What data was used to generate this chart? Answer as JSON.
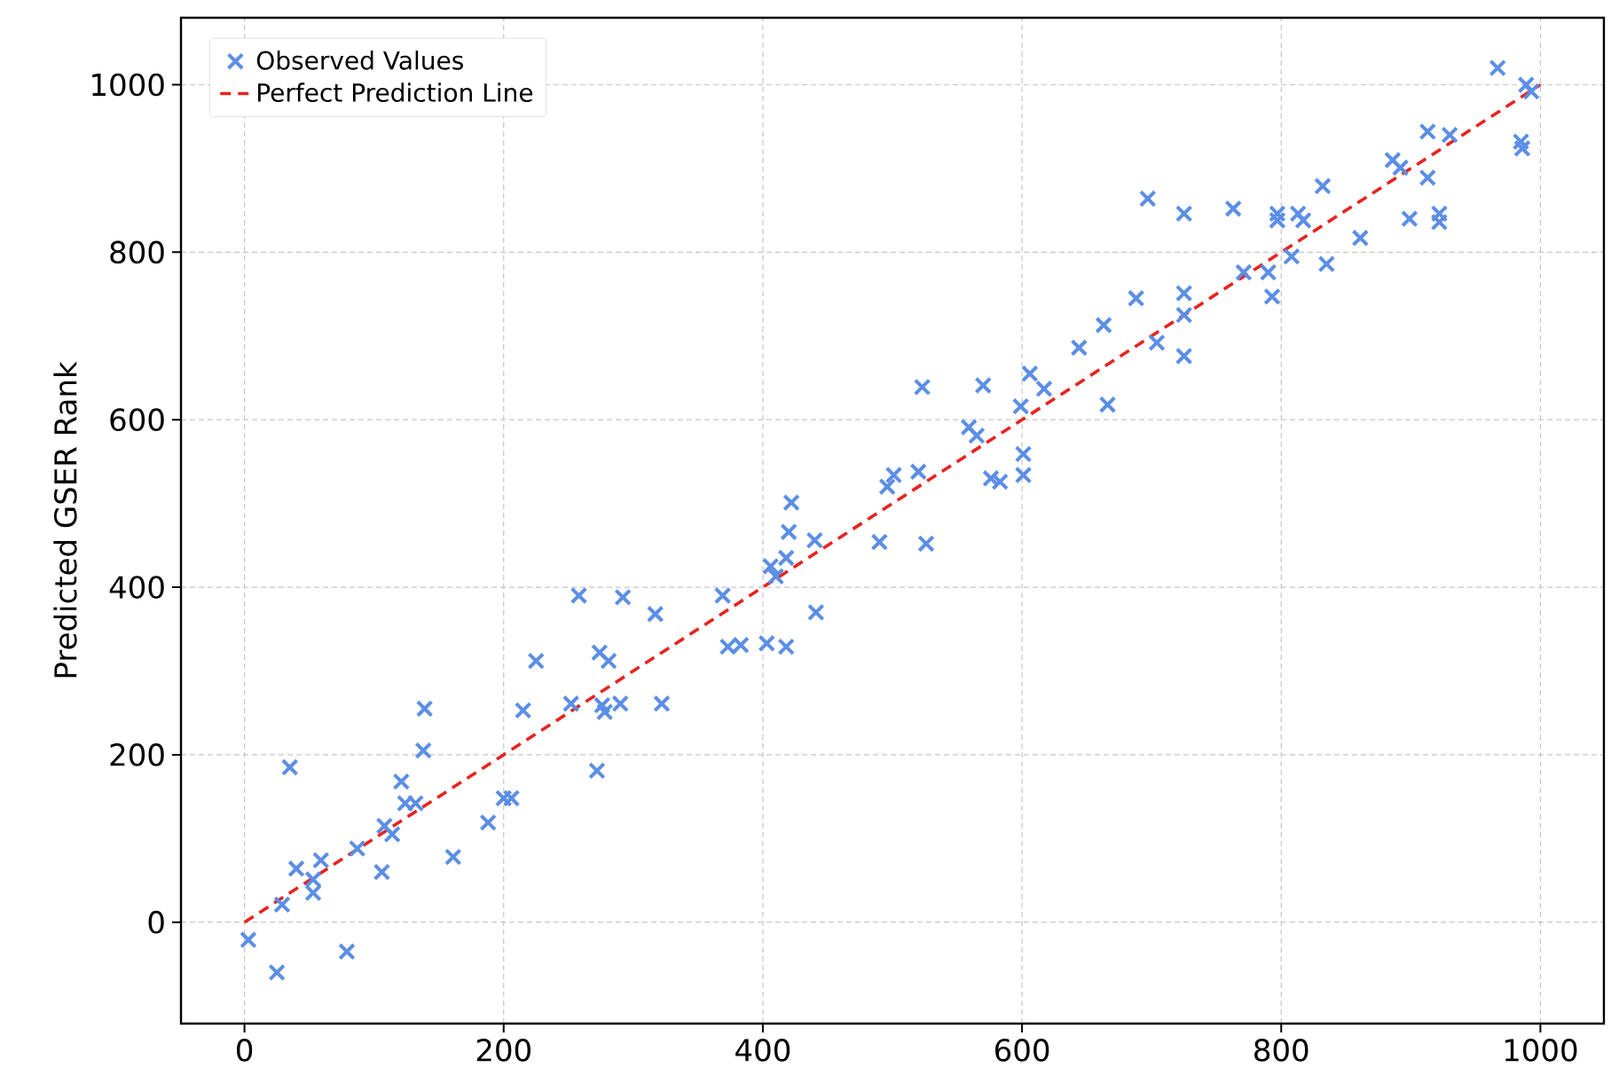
{
  "chart_data": {
    "type": "scatter",
    "ylabel": "Predicted GSER Rank",
    "xlim": [
      -49,
      1049
    ],
    "ylim": [
      -121,
      1080
    ],
    "xticks": [
      0,
      200,
      400,
      600,
      800,
      1000
    ],
    "yticks": [
      0,
      200,
      400,
      600,
      800,
      1000
    ],
    "grid": true,
    "legend": "top left",
    "series": [
      {
        "name": "Observed Values",
        "color": "#5b8ee6",
        "marker": "cross",
        "x": [
          3,
          25,
          29,
          35,
          40,
          53,
          53,
          59,
          79,
          87,
          106,
          108,
          114,
          121,
          124,
          132,
          138,
          139,
          161,
          188,
          200,
          206,
          215,
          225,
          252,
          258,
          272,
          274,
          276,
          278,
          281,
          290,
          292,
          317,
          322,
          369,
          373,
          383,
          403,
          406,
          410,
          418,
          418,
          420,
          422,
          440,
          441,
          490,
          496,
          501,
          520,
          526,
          523,
          559,
          565,
          570,
          576,
          583,
          599,
          601,
          601,
          606,
          617,
          644,
          663,
          666,
          688,
          697,
          704,
          725,
          725,
          725,
          725,
          763,
          771,
          790,
          793,
          797,
          797,
          808,
          813,
          817,
          832,
          835,
          861,
          886,
          892,
          899,
          913,
          913,
          922,
          922,
          930,
          967,
          985,
          986,
          989,
          993
        ],
        "values": [
          -21,
          -60,
          21,
          185,
          64,
          51,
          35,
          74,
          -35,
          88,
          60,
          115,
          105,
          168,
          142,
          142,
          205,
          255,
          78,
          119,
          148,
          148,
          253,
          312,
          261,
          390,
          181,
          322,
          259,
          251,
          312,
          261,
          388,
          368,
          261,
          390,
          329,
          331,
          333,
          425,
          413,
          435,
          329,
          466,
          501,
          456,
          370,
          454,
          520,
          534,
          538,
          452,
          639,
          591,
          581,
          641,
          530,
          526,
          616,
          559,
          534,
          655,
          637,
          686,
          713,
          618,
          745,
          864,
          692,
          846,
          676,
          725,
          751,
          852,
          776,
          776,
          747,
          846,
          838,
          795,
          846,
          838,
          879,
          786,
          817,
          910,
          901,
          840,
          889,
          944,
          846,
          836,
          940,
          1020,
          932,
          924,
          1000,
          992
        ]
      },
      {
        "name": "Perfect Prediction Line",
        "type": "line",
        "color": "#e8231f",
        "marker": "none",
        "line_style": "dashed",
        "x": [
          0,
          1000
        ],
        "values": [
          0,
          1000
        ]
      }
    ]
  }
}
